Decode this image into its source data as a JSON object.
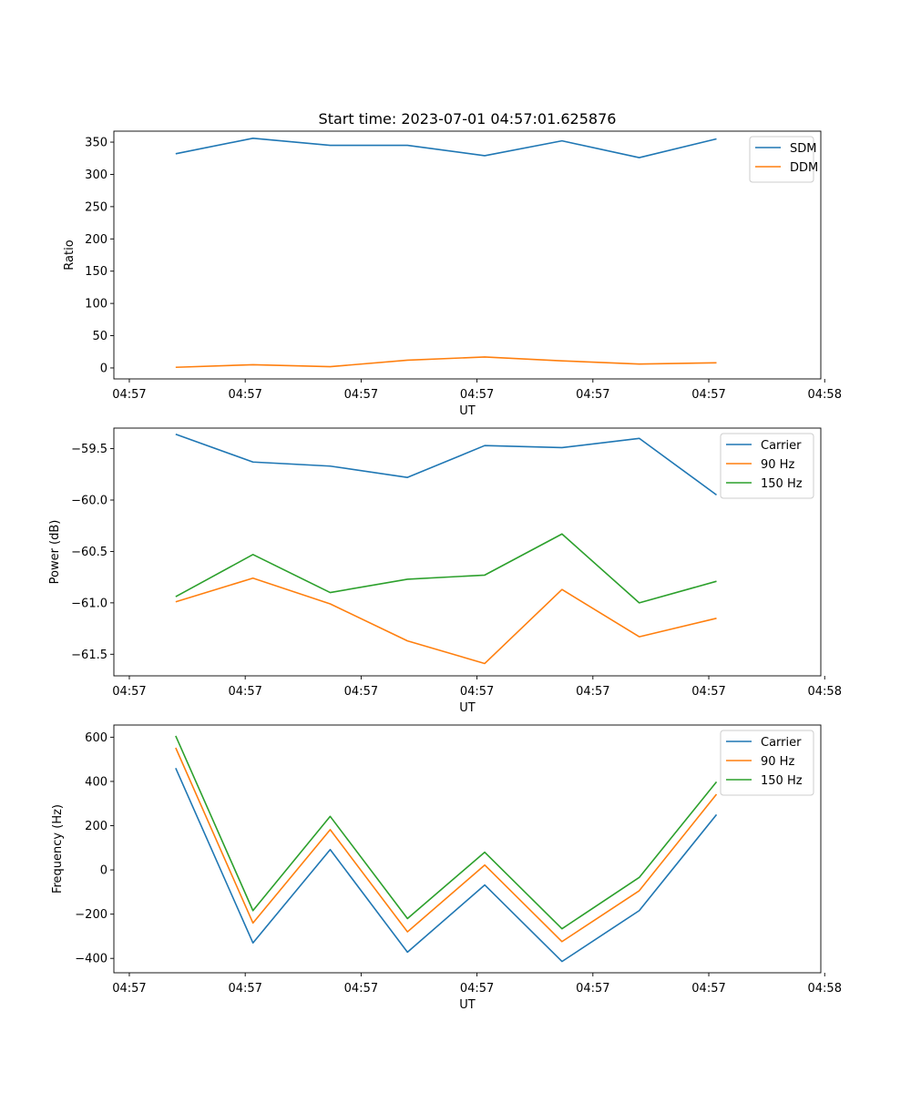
{
  "figure": {
    "title": "Start time: 2023-07-01 04:57:01.625876"
  },
  "chart_data": [
    {
      "type": "line",
      "title": "Start time: 2023-07-01 04:57:01.625876",
      "xlabel": "UT",
      "ylabel": "Ratio",
      "x": [
        1,
        2,
        3,
        4,
        5,
        6,
        7,
        8
      ],
      "xlim": [
        0.2,
        9.35
      ],
      "x_ticks": [
        0.4,
        1.9,
        3.4,
        4.9,
        6.4,
        7.9,
        9.4
      ],
      "x_tick_labels": [
        "04:57",
        "04:57",
        "04:57",
        "04:57",
        "04:57",
        "04:57",
        "04:58"
      ],
      "ylim": [
        -17,
        367
      ],
      "y_ticks": [
        0,
        50,
        100,
        150,
        200,
        250,
        300,
        350
      ],
      "y_tick_labels": [
        "0",
        "50",
        "100",
        "150",
        "200",
        "250",
        "300",
        "350"
      ],
      "legend_position": "upper right",
      "series": [
        {
          "name": "SDM",
          "color": "#1f77b4",
          "values": [
            332,
            356,
            345,
            345,
            329,
            352,
            326,
            355
          ]
        },
        {
          "name": "DDM",
          "color": "#ff7f0e",
          "values": [
            1,
            5,
            2,
            12,
            17,
            11,
            6,
            8
          ]
        }
      ]
    },
    {
      "type": "line",
      "title": "",
      "xlabel": "UT",
      "ylabel": "Power (dB)",
      "x": [
        1,
        2,
        3,
        4,
        5,
        6,
        7,
        8
      ],
      "xlim": [
        0.2,
        9.35
      ],
      "x_ticks": [
        0.4,
        1.9,
        3.4,
        4.9,
        6.4,
        7.9,
        9.4
      ],
      "x_tick_labels": [
        "04:57",
        "04:57",
        "04:57",
        "04:57",
        "04:57",
        "04:57",
        "04:58"
      ],
      "ylim": [
        -61.71,
        -59.3
      ],
      "y_ticks": [
        -59.5,
        -60.0,
        -60.5,
        -61.0,
        -61.5
      ],
      "y_tick_labels": [
        "−59.5",
        "−60.0",
        "−60.5",
        "−61.0",
        "−61.5"
      ],
      "legend_position": "upper right",
      "series": [
        {
          "name": "Carrier",
          "color": "#1f77b4",
          "values": [
            -59.36,
            -59.63,
            -59.67,
            -59.78,
            -59.47,
            -59.49,
            -59.4,
            -59.95
          ]
        },
        {
          "name": "90 Hz",
          "color": "#ff7f0e",
          "values": [
            -60.99,
            -60.76,
            -61.01,
            -61.37,
            -61.59,
            -60.87,
            -61.33,
            -61.15
          ]
        },
        {
          "name": "150 Hz",
          "color": "#2ca02c",
          "values": [
            -60.94,
            -60.53,
            -60.9,
            -60.77,
            -60.73,
            -60.33,
            -61.0,
            -60.79
          ]
        }
      ]
    },
    {
      "type": "line",
      "title": "",
      "xlabel": "UT",
      "ylabel": "Frequency (Hz)",
      "x": [
        1,
        2,
        3,
        4,
        5,
        6,
        7,
        8
      ],
      "xlim": [
        0.2,
        9.35
      ],
      "x_ticks": [
        0.4,
        1.9,
        3.4,
        4.9,
        6.4,
        7.9,
        9.4
      ],
      "x_tick_labels": [
        "04:57",
        "04:57",
        "04:57",
        "04:57",
        "04:57",
        "04:57",
        "04:58"
      ],
      "ylim": [
        -465,
        655
      ],
      "y_ticks": [
        -400,
        -200,
        0,
        200,
        400,
        600
      ],
      "y_tick_labels": [
        "−400",
        "−200",
        "0",
        "200",
        "400",
        "600"
      ],
      "legend_position": "upper right",
      "series": [
        {
          "name": "Carrier",
          "color": "#1f77b4",
          "values": [
            460,
            -330,
            92,
            -372,
            -68,
            -414,
            -184,
            250
          ]
        },
        {
          "name": "90 Hz",
          "color": "#ff7f0e",
          "values": [
            552,
            -240,
            182,
            -280,
            22,
            -324,
            -94,
            342
          ]
        },
        {
          "name": "150 Hz",
          "color": "#2ca02c",
          "values": [
            606,
            -184,
            242,
            -220,
            80,
            -266,
            -34,
            398
          ]
        }
      ]
    }
  ]
}
